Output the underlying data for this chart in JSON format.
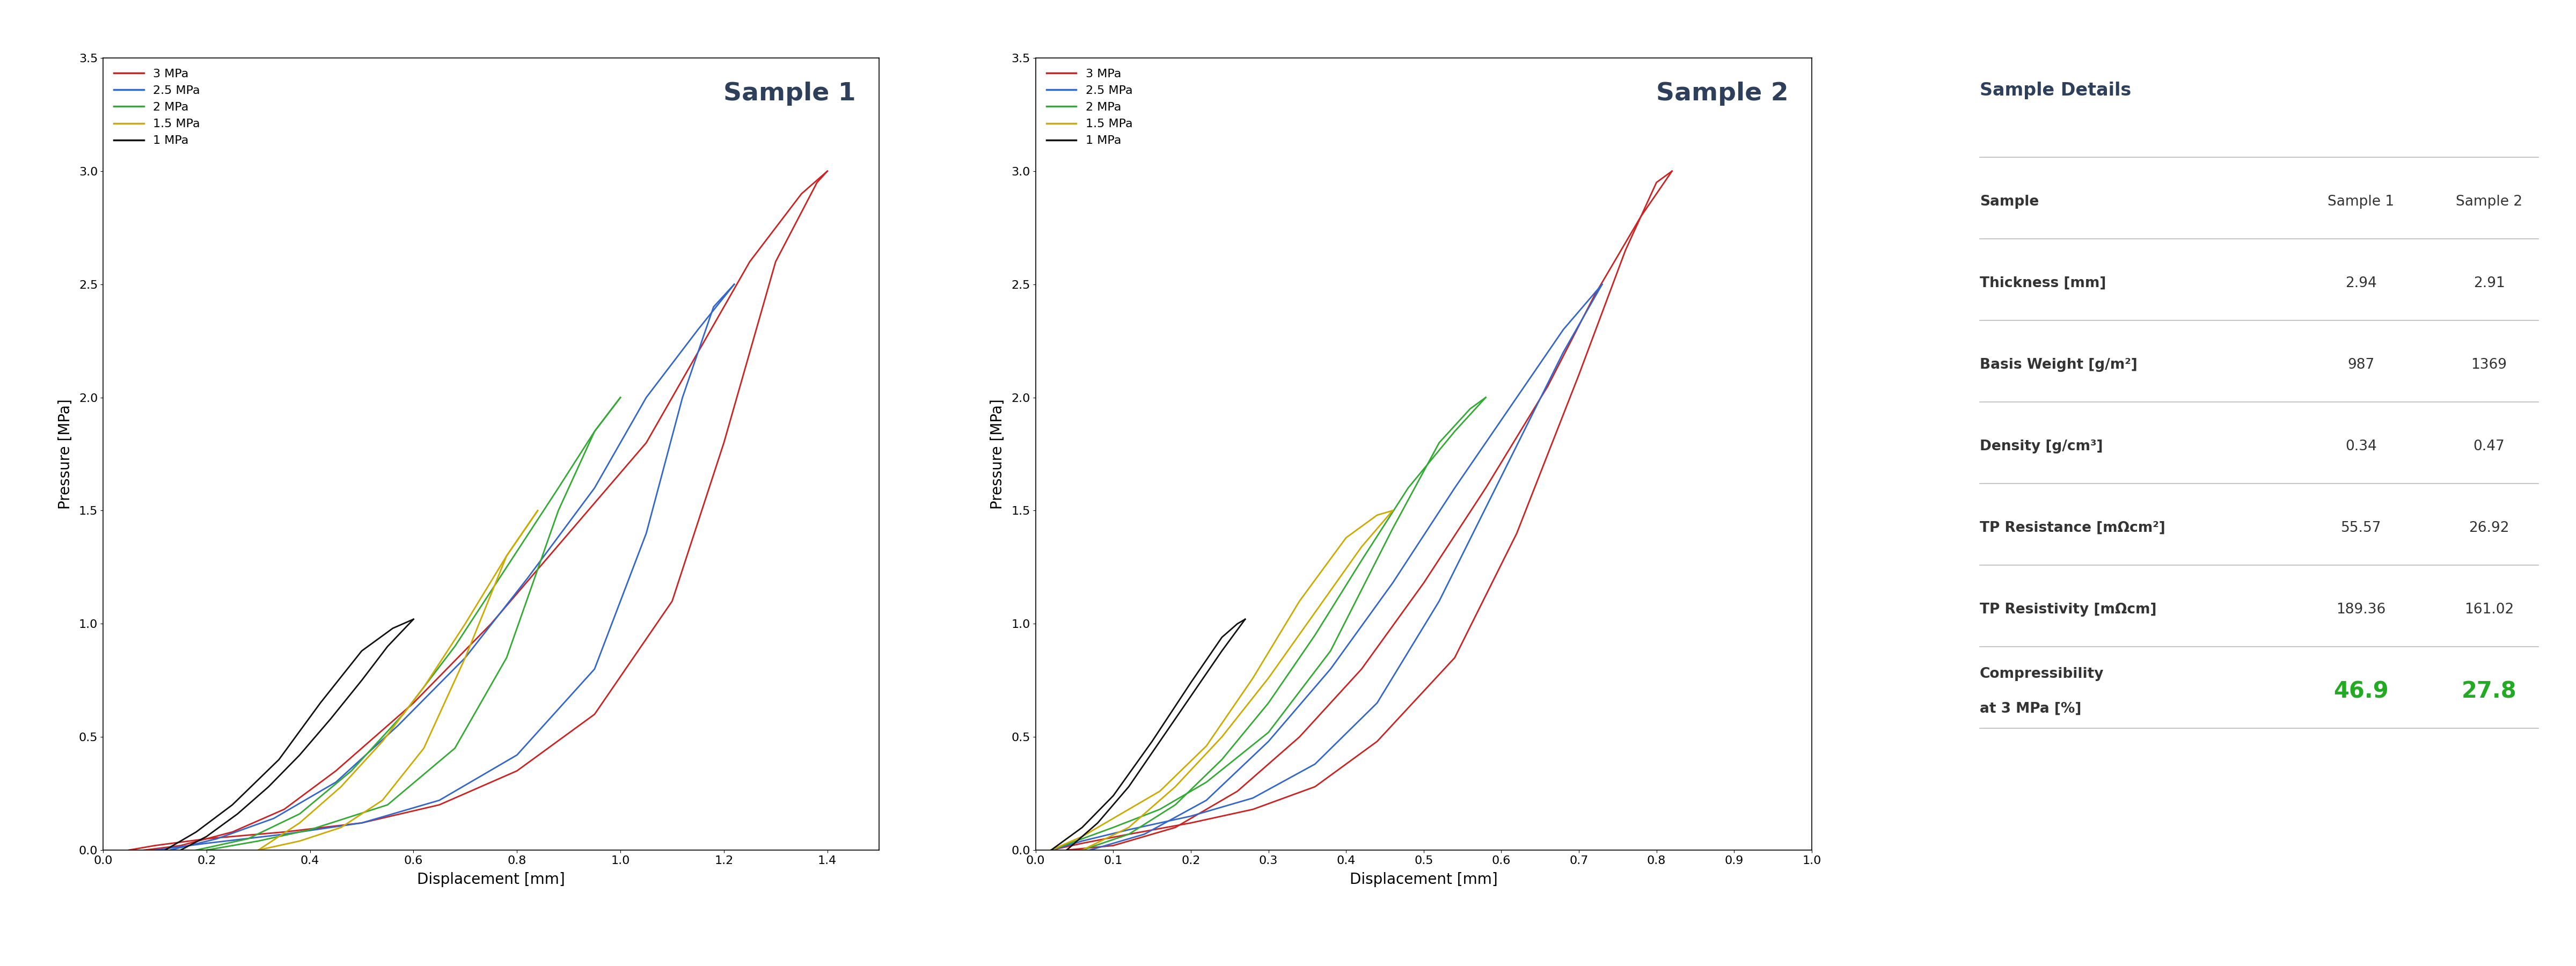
{
  "title1": "Sample 1",
  "title2": "Sample 2",
  "xlabel": "Displacement [mm]",
  "ylabel": "Pressure [MPa]",
  "bg_color": "#ffffff",
  "title_color": "#2e3f5c",
  "line_colors": [
    "#cc2222",
    "#3366cc",
    "#33aa33",
    "#ccaa00",
    "#111111"
  ],
  "legend_labels": [
    "3 MPa",
    "2.5 MPa",
    "2 MPa",
    "1.5 MPa",
    "1 MPa"
  ],
  "sample1": {
    "xlim": [
      0,
      1.5
    ],
    "xticks": [
      0,
      0.2,
      0.4,
      0.6,
      0.8,
      1.0,
      1.2,
      1.4
    ],
    "ylim": [
      0,
      3.5
    ],
    "yticks": [
      0,
      0.5,
      1.0,
      1.5,
      2.0,
      2.5,
      3.0,
      3.5
    ],
    "curves": [
      {
        "load_x": [
          0.05,
          0.1,
          0.2,
          0.35,
          0.5,
          0.65,
          0.8,
          0.95,
          1.1,
          1.2,
          1.3,
          1.38,
          1.4
        ],
        "load_y": [
          0.0,
          0.02,
          0.05,
          0.08,
          0.12,
          0.2,
          0.35,
          0.6,
          1.1,
          1.8,
          2.6,
          2.95,
          3.0
        ],
        "unload_x": [
          1.4,
          1.35,
          1.25,
          1.15,
          1.05,
          0.9,
          0.75,
          0.6,
          0.45,
          0.35,
          0.25,
          0.15,
          0.08
        ],
        "unload_y": [
          3.0,
          2.9,
          2.6,
          2.2,
          1.8,
          1.4,
          1.0,
          0.65,
          0.35,
          0.18,
          0.08,
          0.02,
          0.0
        ]
      },
      {
        "load_x": [
          0.1,
          0.2,
          0.35,
          0.5,
          0.65,
          0.8,
          0.95,
          1.05,
          1.12,
          1.18,
          1.22
        ],
        "load_y": [
          0.0,
          0.03,
          0.07,
          0.12,
          0.22,
          0.42,
          0.8,
          1.4,
          2.0,
          2.4,
          2.5
        ],
        "unload_x": [
          1.22,
          1.15,
          1.05,
          0.95,
          0.82,
          0.7,
          0.57,
          0.45,
          0.33,
          0.22,
          0.13
        ],
        "unload_y": [
          2.5,
          2.3,
          2.0,
          1.6,
          1.2,
          0.85,
          0.55,
          0.3,
          0.14,
          0.05,
          0.0
        ]
      },
      {
        "load_x": [
          0.2,
          0.3,
          0.4,
          0.55,
          0.68,
          0.78,
          0.88,
          0.95,
          1.0
        ],
        "load_y": [
          0.0,
          0.04,
          0.09,
          0.2,
          0.45,
          0.85,
          1.5,
          1.85,
          2.0
        ],
        "unload_x": [
          1.0,
          0.95,
          0.88,
          0.78,
          0.68,
          0.58,
          0.48,
          0.38,
          0.28,
          0.18
        ],
        "unload_y": [
          2.0,
          1.85,
          1.6,
          1.25,
          0.9,
          0.6,
          0.35,
          0.16,
          0.05,
          0.0
        ]
      },
      {
        "load_x": [
          0.3,
          0.38,
          0.46,
          0.54,
          0.62,
          0.7,
          0.78,
          0.84
        ],
        "load_y": [
          0.0,
          0.04,
          0.1,
          0.22,
          0.45,
          0.85,
          1.3,
          1.5
        ],
        "unload_x": [
          0.84,
          0.78,
          0.7,
          0.62,
          0.54,
          0.46,
          0.38,
          0.3
        ],
        "unload_y": [
          1.5,
          1.3,
          1.0,
          0.72,
          0.48,
          0.28,
          0.12,
          0.0
        ]
      },
      {
        "load_x": [
          0.12,
          0.18,
          0.25,
          0.34,
          0.42,
          0.5,
          0.56,
          0.6
        ],
        "load_y": [
          0.0,
          0.08,
          0.2,
          0.4,
          0.65,
          0.88,
          0.98,
          1.02
        ],
        "unload_x": [
          0.6,
          0.55,
          0.5,
          0.44,
          0.38,
          0.32,
          0.26,
          0.2,
          0.15
        ],
        "unload_y": [
          1.02,
          0.9,
          0.75,
          0.58,
          0.42,
          0.28,
          0.16,
          0.06,
          0.0
        ]
      }
    ]
  },
  "sample2": {
    "xlim": [
      0,
      1.0
    ],
    "xticks": [
      0,
      0.1,
      0.2,
      0.3,
      0.4,
      0.5,
      0.6,
      0.7,
      0.8,
      0.9,
      1.0
    ],
    "ylim": [
      0,
      3.5
    ],
    "yticks": [
      0,
      0.5,
      1.0,
      1.5,
      2.0,
      2.5,
      3.0,
      3.5
    ],
    "curves": [
      {
        "load_x": [
          0.02,
          0.06,
          0.12,
          0.2,
          0.28,
          0.36,
          0.44,
          0.54,
          0.62,
          0.7,
          0.76,
          0.8,
          0.82
        ],
        "load_y": [
          0.0,
          0.03,
          0.07,
          0.12,
          0.18,
          0.28,
          0.48,
          0.85,
          1.4,
          2.1,
          2.65,
          2.95,
          3.0
        ],
        "unload_x": [
          0.82,
          0.78,
          0.72,
          0.66,
          0.58,
          0.5,
          0.42,
          0.34,
          0.26,
          0.18,
          0.1,
          0.04
        ],
        "unload_y": [
          3.0,
          2.8,
          2.45,
          2.05,
          1.6,
          1.18,
          0.8,
          0.5,
          0.26,
          0.1,
          0.02,
          0.0
        ]
      },
      {
        "load_x": [
          0.02,
          0.06,
          0.12,
          0.2,
          0.28,
          0.36,
          0.44,
          0.52,
          0.6,
          0.68,
          0.73
        ],
        "load_y": [
          0.0,
          0.04,
          0.09,
          0.15,
          0.23,
          0.38,
          0.65,
          1.1,
          1.65,
          2.2,
          2.5
        ],
        "unload_x": [
          0.73,
          0.68,
          0.62,
          0.54,
          0.46,
          0.38,
          0.3,
          0.22,
          0.14,
          0.07
        ],
        "unload_y": [
          2.5,
          2.3,
          2.0,
          1.6,
          1.18,
          0.8,
          0.48,
          0.22,
          0.07,
          0.0
        ]
      },
      {
        "load_x": [
          0.02,
          0.06,
          0.1,
          0.16,
          0.22,
          0.3,
          0.38,
          0.46,
          0.52,
          0.56,
          0.58
        ],
        "load_y": [
          0.0,
          0.05,
          0.1,
          0.18,
          0.3,
          0.52,
          0.88,
          1.42,
          1.8,
          1.95,
          2.0
        ],
        "unload_x": [
          0.58,
          0.54,
          0.48,
          0.42,
          0.36,
          0.3,
          0.24,
          0.18,
          0.12,
          0.06
        ],
        "unload_y": [
          2.0,
          1.85,
          1.6,
          1.28,
          0.95,
          0.65,
          0.4,
          0.2,
          0.07,
          0.0
        ]
      },
      {
        "load_x": [
          0.02,
          0.06,
          0.1,
          0.16,
          0.22,
          0.28,
          0.34,
          0.4,
          0.44,
          0.46
        ],
        "load_y": [
          0.0,
          0.06,
          0.14,
          0.26,
          0.46,
          0.76,
          1.1,
          1.38,
          1.48,
          1.5
        ],
        "unload_x": [
          0.46,
          0.42,
          0.36,
          0.3,
          0.24,
          0.18,
          0.12,
          0.06
        ],
        "unload_y": [
          1.5,
          1.34,
          1.05,
          0.76,
          0.5,
          0.28,
          0.1,
          0.0
        ]
      },
      {
        "load_x": [
          0.02,
          0.06,
          0.1,
          0.15,
          0.2,
          0.24,
          0.26,
          0.27
        ],
        "load_y": [
          0.0,
          0.1,
          0.24,
          0.48,
          0.74,
          0.94,
          1.0,
          1.02
        ],
        "unload_x": [
          0.27,
          0.24,
          0.2,
          0.16,
          0.12,
          0.08,
          0.04
        ],
        "unload_y": [
          1.02,
          0.88,
          0.68,
          0.48,
          0.28,
          0.12,
          0.0
        ]
      }
    ]
  },
  "table": {
    "title": "Sample Details",
    "title_color": "#2e3f5c",
    "rows": [
      [
        "Sample",
        "Sample 1",
        "Sample 2"
      ],
      [
        "Thickness [mm]",
        "2.94",
        "2.91"
      ],
      [
        "Basis Weight [g/m²]",
        "987",
        "1369"
      ],
      [
        "Density [g/cm³]",
        "0.34",
        "0.47"
      ],
      [
        "TP Resistance [mΩcm²]",
        "55.57",
        "26.92"
      ],
      [
        "TP Resistivity [mΩcm]",
        "189.36",
        "161.02"
      ],
      [
        "Compressibility\nat 3 MPa [%]",
        "46.9",
        "27.8"
      ]
    ],
    "highlight_row": 6,
    "highlight_color": "#22aa22"
  }
}
